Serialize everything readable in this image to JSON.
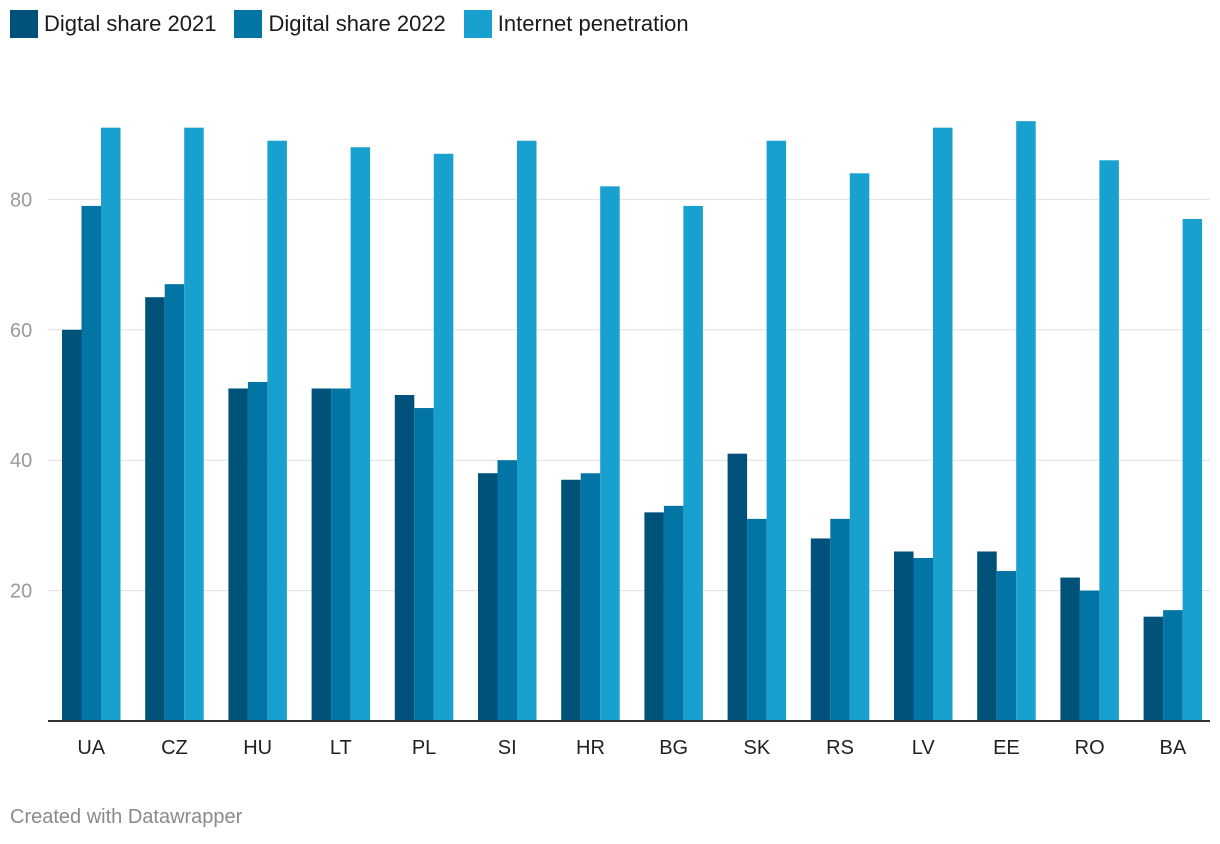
{
  "chart_data": {
    "type": "bar",
    "title": "",
    "xlabel": "",
    "ylabel": "",
    "ylim": [
      0,
      100
    ],
    "yticks": [
      20,
      40,
      60,
      80
    ],
    "grid": true,
    "legend_position": "top-left",
    "categories": [
      "UA",
      "CZ",
      "HU",
      "LT",
      "PL",
      "SI",
      "HR",
      "BG",
      "SK",
      "RS",
      "LV",
      "EE",
      "RO",
      "BA"
    ],
    "series": [
      {
        "name": "Digtal share 2021",
        "color": "#00527a",
        "values": [
          60,
          65,
          51,
          51,
          50,
          38,
          37,
          32,
          41,
          28,
          26,
          26,
          22,
          16
        ]
      },
      {
        "name": "Digital share 2022",
        "color": "#0275a5",
        "values": [
          79,
          67,
          52,
          51,
          48,
          40,
          38,
          33,
          31,
          31,
          25,
          23,
          20,
          17
        ]
      },
      {
        "name": "Internet penetration",
        "color": "#18a1cf",
        "values": [
          91,
          91,
          89,
          88,
          87,
          89,
          82,
          79,
          89,
          84,
          91,
          92,
          86,
          77
        ]
      }
    ]
  },
  "footer": {
    "credit": "Created with Datawrapper"
  }
}
